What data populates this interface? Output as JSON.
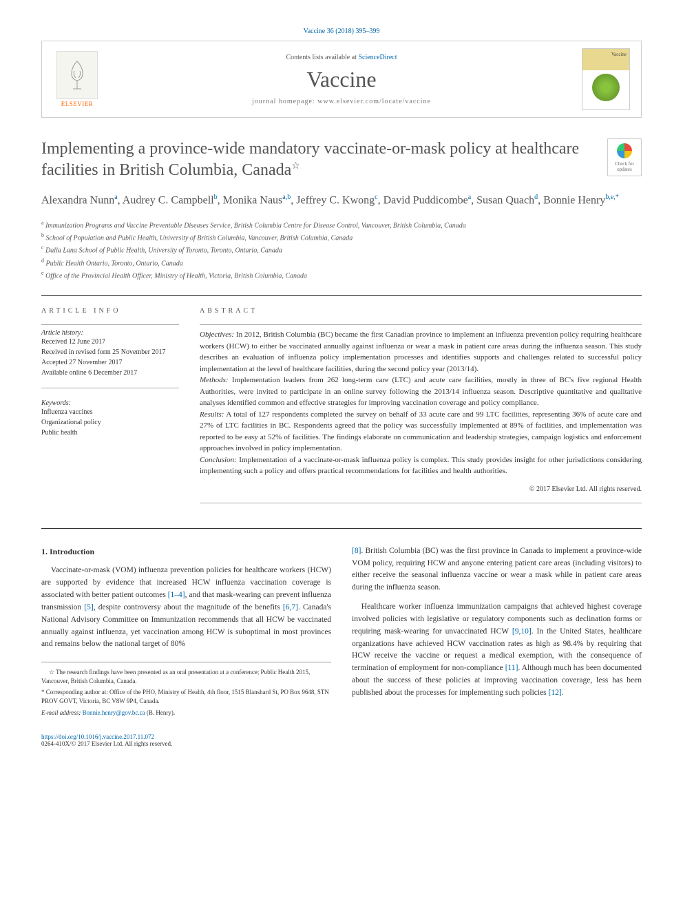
{
  "citation": "Vaccine 36 (2018) 395–399",
  "masthead": {
    "contents_prefix": "Contents lists available at ",
    "contents_link": "ScienceDirect",
    "journal": "Vaccine",
    "homepage_prefix": "journal homepage: ",
    "homepage_url": "www.elsevier.com/locate/vaccine",
    "elsevier": "ELSEVIER",
    "cover_label": "Vaccine"
  },
  "check_updates": "Check for updates",
  "title": "Implementing a province-wide mandatory vaccinate-or-mask policy at healthcare facilities in British Columbia, Canada",
  "title_note": "☆",
  "authors_html": "Alexandra Nunn<sup>a</sup>, Audrey C. Campbell<sup>b</sup>, Monika Naus<sup>a,b</sup>, Jeffrey C. Kwong<sup>c</sup>, David Puddicombe<sup>a</sup>, Susan Quach<sup>d</sup>, Bonnie Henry<sup>b,e,*</sup>",
  "affiliations": [
    {
      "sup": "a",
      "text": "Immunization Programs and Vaccine Preventable Diseases Service, British Columbia Centre for Disease Control, Vancouver, British Columbia, Canada"
    },
    {
      "sup": "b",
      "text": "School of Population and Public Health, University of British Columbia, Vancouver, British Columbia, Canada"
    },
    {
      "sup": "c",
      "text": "Dalla Lana School of Public Health, University of Toronto, Toronto, Ontario, Canada"
    },
    {
      "sup": "d",
      "text": "Public Health Ontario, Toronto, Ontario, Canada"
    },
    {
      "sup": "e",
      "text": "Office of the Provincial Health Officer, Ministry of Health, Victoria, British Columbia, Canada"
    }
  ],
  "info_heading": "ARTICLE INFO",
  "abstract_heading": "ABSTRACT",
  "history_label": "Article history:",
  "history": [
    "Received 12 June 2017",
    "Received in revised form 25 November 2017",
    "Accepted 27 November 2017",
    "Available online 6 December 2017"
  ],
  "keywords_label": "Keywords:",
  "keywords": [
    "Influenza vaccines",
    "Organizational policy",
    "Public health"
  ],
  "abstract": {
    "objectives_label": "Objectives:",
    "objectives": "In 2012, British Columbia (BC) became the first Canadian province to implement an influenza prevention policy requiring healthcare workers (HCW) to either be vaccinated annually against influenza or wear a mask in patient care areas during the influenza season. This study describes an evaluation of influenza policy implementation processes and identifies supports and challenges related to successful policy implementation at the level of healthcare facilities, during the second policy year (2013/14).",
    "methods_label": "Methods:",
    "methods": "Implementation leaders from 262 long-term care (LTC) and acute care facilities, mostly in three of BC's five regional Health Authorities, were invited to participate in an online survey following the 2013/14 influenza season. Descriptive quantitative and qualitative analyses identified common and effective strategies for improving vaccination coverage and policy compliance.",
    "results_label": "Results:",
    "results": "A total of 127 respondents completed the survey on behalf of 33 acute care and 99 LTC facilities, representing 36% of acute care and 27% of LTC facilities in BC. Respondents agreed that the policy was successfully implemented at 89% of facilities, and implementation was reported to be easy at 52% of facilities. The findings elaborate on communication and leadership strategies, campaign logistics and enforcement approaches involved in policy implementation.",
    "conclusion_label": "Conclusion:",
    "conclusion": "Implementation of a vaccinate-or-mask influenza policy is complex. This study provides insight for other jurisdictions considering implementing such a policy and offers practical recommendations for facilities and health authorities.",
    "copyright": "© 2017 Elsevier Ltd. All rights reserved."
  },
  "intro_heading": "1. Introduction",
  "intro_p1_a": "Vaccinate-or-mask (VOM) influenza prevention policies for healthcare workers (HCW) are supported by evidence that increased HCW influenza vaccination coverage is associated with better patient outcomes ",
  "intro_ref1": "[1–4]",
  "intro_p1_b": ", and that mask-wearing can prevent influenza transmission ",
  "intro_ref2": "[5]",
  "intro_p1_c": ", despite controversy about the magnitude of the benefits ",
  "intro_ref3": "[6,7]",
  "intro_p1_d": ". Canada's National Advisory Committee on Immunization recommends that all HCW be vaccinated annually against influenza, yet vaccination among HCW is suboptimal in most provinces and remains below the national target of 80%",
  "col2_ref1": "[8]",
  "col2_p1": ". British Columbia (BC) was the first province in Canada to implement a province-wide VOM policy, requiring HCW and anyone entering patient care areas (including visitors) to either receive the seasonal influenza vaccine or wear a mask while in patient care areas during the influenza season.",
  "col2_p2_a": "Healthcare worker influenza immunization campaigns that achieved highest coverage involved policies with legislative or regulatory components such as declination forms or requiring mask-wearing for unvaccinated HCW ",
  "col2_ref2": "[9,10]",
  "col2_p2_b": ". In the United States, healthcare organizations have achieved HCW vaccination rates as high as 98.4% by requiring that HCW receive the vaccine or request a medical exemption, with the consequence of termination of employment for non-compliance ",
  "col2_ref3": "[11]",
  "col2_p2_c": ". Although much has been documented about the success of these policies at improving vaccination coverage, less has been published about the processes for implementing such policies ",
  "col2_ref4": "[12]",
  "col2_p2_d": ".",
  "footnotes": {
    "star": "☆ The research findings have been presented as an oral presentation at a conference; Public Health 2015, Vancouver, British Columbia, Canada.",
    "corr": "* Corresponding author at: Office of the PHO, Ministry of Health, 4th floor, 1515 Blanshard St, PO Box 9648, STN PROV GOVT, Victoria, BC V8W 9P4, Canada.",
    "email_label": "E-mail address: ",
    "email": "Bonnie.henry@gov.bc.ca",
    "email_suffix": " (B. Henry)."
  },
  "footer": {
    "doi": "https://doi.org/10.1016/j.vaccine.2017.11.072",
    "issn_line": "0264-410X/© 2017 Elsevier Ltd. All rights reserved."
  },
  "colors": {
    "link": "#0066aa",
    "text": "#333333",
    "heading": "#555555",
    "elsevier_orange": "#ff6600"
  }
}
